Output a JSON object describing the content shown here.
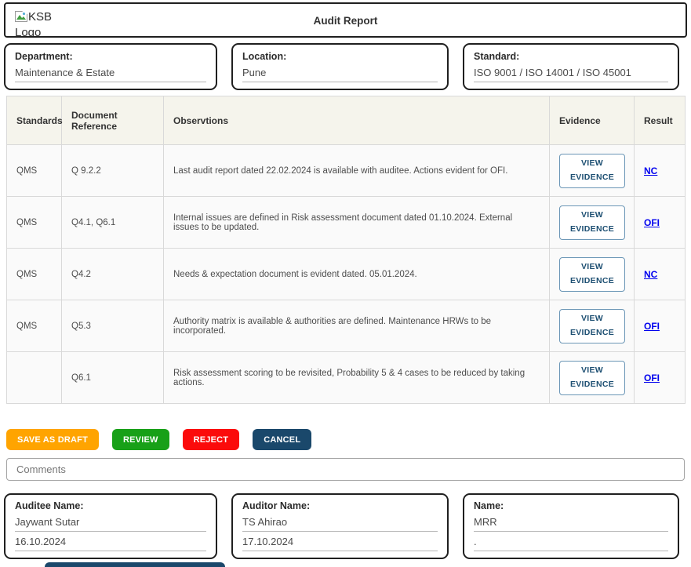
{
  "header": {
    "logo_alt": "KSB Logo",
    "title": "Audit Report"
  },
  "fields": [
    {
      "label": "Department:",
      "value": "Maintenance & Estate"
    },
    {
      "label": "Location:",
      "value": "Pune"
    },
    {
      "label": "Standard:",
      "value": "ISO 9001 / ISO 14001 / ISO 45001"
    }
  ],
  "table": {
    "headers": [
      "Standards",
      "Document Reference",
      "Observtions",
      "Evidence",
      "Result"
    ],
    "evidence_button_label": "VIEW EVIDENCE",
    "rows": [
      {
        "standard": "QMS",
        "doc_ref": "Q 9.2.2",
        "observation": "Last audit report dated 22.02.2024 is available with auditee. Actions evident for OFI.",
        "result": "NC"
      },
      {
        "standard": "QMS",
        "doc_ref": "Q4.1, Q6.1",
        "observation": "Internal issues are defined in Risk assessment document dated 01.10.2024. External issues to be updated.",
        "result": "OFI"
      },
      {
        "standard": "QMS",
        "doc_ref": "Q4.2",
        "observation": "Needs & expectation document is evident dated. 05.01.2024.",
        "result": "NC"
      },
      {
        "standard": "QMS",
        "doc_ref": "Q5.3",
        "observation": "Authority matrix is available & authorities are defined. Maintenance HRWs to be incorporated.",
        "result": "OFI"
      },
      {
        "standard": "",
        "doc_ref": "Q6.1",
        "observation": "Risk assessment scoring to be revisited, Probability 5 & 4 cases to be reduced by taking actions.",
        "result": "OFI"
      }
    ]
  },
  "actions": [
    {
      "label": "SAVE AS DRAFT",
      "color": "#FFA400"
    },
    {
      "label": "REVIEW",
      "color": "#18A018"
    },
    {
      "label": "REJECT",
      "color": "#FB0B0B"
    },
    {
      "label": "CANCEL",
      "color": "#1A486B"
    }
  ],
  "comments": {
    "placeholder": "Comments"
  },
  "signatures": [
    {
      "label": "Auditee Name:",
      "name": "Jaywant Sutar",
      "date": "16.10.2024"
    },
    {
      "label": "Auditor Name:",
      "name": "TS Ahirao",
      "date": "17.10.2024"
    },
    {
      "label": "Name:",
      "name": "MRR",
      "date": "."
    }
  ],
  "cutoff_bar": {
    "color": "#1A486B"
  }
}
